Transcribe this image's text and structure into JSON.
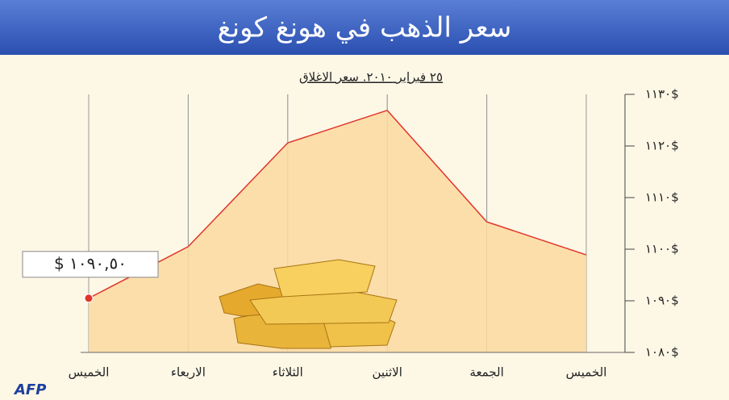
{
  "chart_data": {
    "type": "area",
    "title": "سعر الذهب في هونغ كونغ",
    "subtitle": "٢٥ فبراير ٢٠١٠. سعر الاغلاق",
    "categories": [
      "الخميس",
      "الاربعاء",
      "الثلاثاء",
      "الاثنين",
      "الجمعة",
      "الخميس"
    ],
    "values": [
      1090.5,
      1100.5,
      1120.6,
      1126.9,
      1105.3,
      1098.9
    ],
    "value_labels": [
      "$ ١٠٩٠,٥٠",
      null,
      null,
      null,
      null,
      null
    ],
    "color": "#fbd9a0",
    "line_color": "#e0342a",
    "ylim": [
      1080,
      1130
    ],
    "yticks": [
      {
        "value": 1080,
        "label": "١٠٨٠$"
      },
      {
        "value": 1090,
        "label": "١٠٩٠$"
      },
      {
        "value": 1100,
        "label": "١١٠٠$"
      },
      {
        "value": 1110,
        "label": "١١١٠$"
      },
      {
        "value": 1120,
        "label": "١١٢٠$"
      },
      {
        "value": 1130,
        "label": "١١٣٠$"
      }
    ],
    "grid": true,
    "source": "AFP"
  }
}
